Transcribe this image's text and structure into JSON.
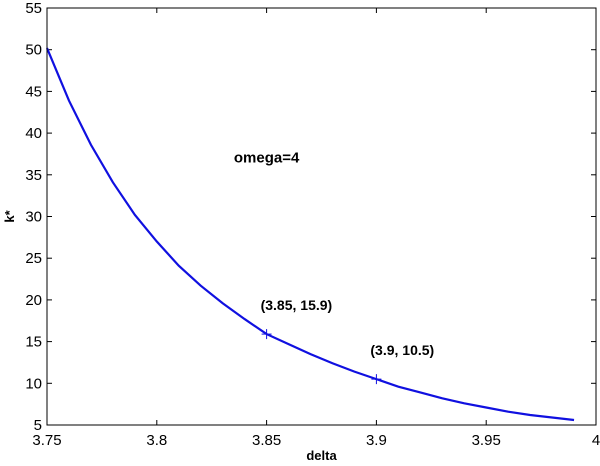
{
  "chart_data": {
    "type": "line",
    "title": "",
    "xlabel": "delta",
    "ylabel": "k*",
    "xlim": [
      3.75,
      4.0
    ],
    "ylim": [
      5,
      55
    ],
    "xticks": [
      3.75,
      3.8,
      3.85,
      3.9,
      3.95,
      4.0
    ],
    "xtick_labels": [
      "3.75",
      "3.8",
      "3.85",
      "3.9",
      "3.95",
      "4"
    ],
    "yticks": [
      5,
      10,
      15,
      20,
      25,
      30,
      35,
      40,
      45,
      50,
      55
    ],
    "ytick_labels": [
      "5",
      "10",
      "15",
      "20",
      "25",
      "30",
      "35",
      "40",
      "45",
      "50",
      "55"
    ],
    "grid": false,
    "series": [
      {
        "color": "#1010e0",
        "x": [
          3.75,
          3.76,
          3.77,
          3.78,
          3.79,
          3.8,
          3.81,
          3.82,
          3.83,
          3.84,
          3.85,
          3.86,
          3.87,
          3.88,
          3.89,
          3.9,
          3.91,
          3.92,
          3.93,
          3.94,
          3.95,
          3.96,
          3.97,
          3.98,
          3.99
        ],
        "y": [
          50.2,
          43.9,
          38.6,
          34.1,
          30.2,
          27.0,
          24.1,
          21.7,
          19.6,
          17.7,
          15.9,
          14.7,
          13.5,
          12.4,
          11.4,
          10.5,
          9.6,
          8.9,
          8.2,
          7.6,
          7.1,
          6.6,
          6.2,
          5.9,
          5.6
        ]
      }
    ],
    "markers": [
      {
        "x": 3.85,
        "y": 15.9,
        "label": "(3.85, 15.9)"
      },
      {
        "x": 3.9,
        "y": 10.5,
        "label": "(3.9, 10.5)"
      }
    ],
    "annotations": [
      {
        "text": "omega=4",
        "x": 3.85,
        "y": 36.5
      }
    ]
  }
}
